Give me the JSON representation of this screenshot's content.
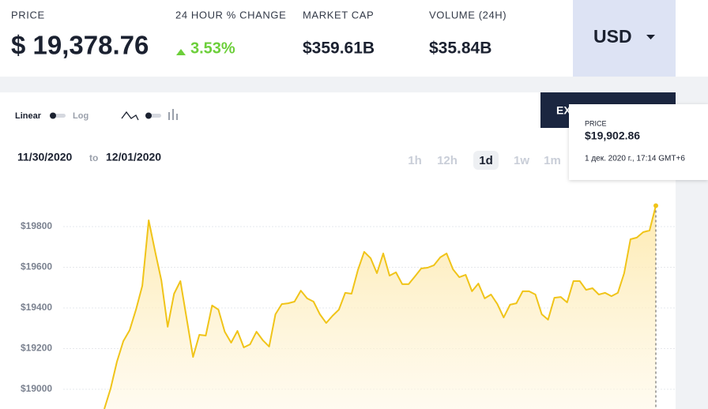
{
  "stats": [
    {
      "label": "PRICE",
      "value": "$ 19,378.76"
    },
    {
      "label": "24 HOUR % CHANGE",
      "value": "3.53%"
    },
    {
      "label": "MARKET CAP",
      "value": "$359.61B"
    },
    {
      "label": "VOLUME (24H)",
      "value": "$35.84B"
    }
  ],
  "currency": "USD",
  "controls": {
    "linear": "Linear",
    "log": "Log",
    "export": "EXPORT"
  },
  "date_range": {
    "from": "11/30/2020",
    "sep": "to",
    "to": "12/01/2020"
  },
  "timeframes": [
    "1h",
    "12h",
    "1d",
    "1w",
    "1m"
  ],
  "tooltip": {
    "label": "PRICE",
    "value": "$19,902.86",
    "time": "1 дек. 2020 г., 17:14 GMT+6"
  },
  "chart_data": {
    "type": "line",
    "color": "#f0c419",
    "grid": true,
    "ylim": [
      18900,
      20020
    ],
    "yticks": [
      {
        "value": 19000,
        "label": "$19000"
      },
      {
        "value": 19200,
        "label": "$19200"
      },
      {
        "value": 19400,
        "label": "$19400"
      },
      {
        "value": 19600,
        "label": "$19600"
      },
      {
        "value": 19800,
        "label": "$19800"
      }
    ],
    "values": [
      18903,
      19004,
      19136,
      19237,
      19291,
      19392,
      19509,
      19831,
      19680,
      19536,
      19307,
      19470,
      19532,
      19346,
      19159,
      19268,
      19264,
      19412,
      19392,
      19283,
      19229,
      19287,
      19206,
      19221,
      19283,
      19241,
      19210,
      19369,
      19419,
      19423,
      19431,
      19485,
      19447,
      19431,
      19369,
      19326,
      19361,
      19392,
      19474,
      19470,
      19586,
      19676,
      19645,
      19571,
      19668,
      19559,
      19575,
      19517,
      19517,
      19555,
      19594,
      19598,
      19610,
      19649,
      19668,
      19590,
      19551,
      19563,
      19482,
      19520,
      19447,
      19466,
      19419,
      19353,
      19416,
      19423,
      19482,
      19482,
      19466,
      19369,
      19342,
      19450,
      19454,
      19427,
      19532,
      19532,
      19489,
      19497,
      19466,
      19474,
      19458,
      19474,
      19571,
      19738,
      19746,
      19773,
      19781,
      19902.86
    ]
  }
}
